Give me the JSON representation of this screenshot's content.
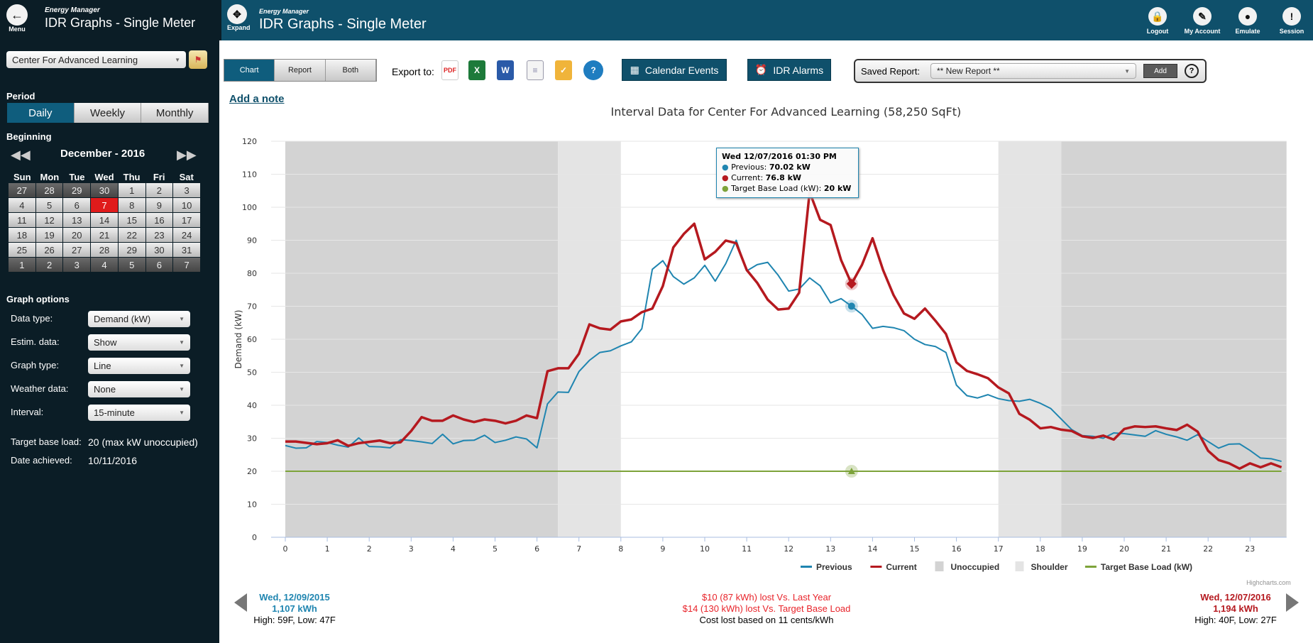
{
  "sidebar": {
    "menu_label": "Menu",
    "app_name": "Energy Manager",
    "page_title": "IDR Graphs - Single Meter",
    "site_select": "Center For Advanced Learning",
    "period_label": "Period",
    "period_options": [
      "Daily",
      "Weekly",
      "Monthly"
    ],
    "period_selected": "Daily",
    "beginning_label": "Beginning",
    "month_label": "December - 2016",
    "weekdays": [
      "Sun",
      "Mon",
      "Tue",
      "Wed",
      "Thu",
      "Fri",
      "Sat"
    ],
    "days": [
      "27",
      "28",
      "29",
      "30",
      "1",
      "2",
      "3",
      "4",
      "5",
      "6",
      "7",
      "8",
      "9",
      "10",
      "11",
      "12",
      "13",
      "14",
      "15",
      "16",
      "17",
      "18",
      "19",
      "20",
      "21",
      "22",
      "23",
      "24",
      "25",
      "26",
      "27",
      "28",
      "29",
      "30",
      "31",
      "1",
      "2",
      "3",
      "4",
      "5",
      "6",
      "7"
    ],
    "selected_day": "7",
    "graph_options_label": "Graph options",
    "options": [
      {
        "label": "Data type:",
        "value": "Demand (kW)"
      },
      {
        "label": "Estim. data:",
        "value": "Show"
      },
      {
        "label": "Graph type:",
        "value": "Line"
      },
      {
        "label": "Weather data:",
        "value": "None"
      },
      {
        "label": "Interval:",
        "value": "15-minute"
      }
    ],
    "target_base_load_label": "Target base load:",
    "target_base_load_value": "20 (max kW unoccupied)",
    "date_achieved_label": "Date achieved:",
    "date_achieved_value": "10/11/2016"
  },
  "header": {
    "expand_label": "Expand",
    "app_name": "Energy Manager",
    "title": "IDR Graphs - Single Meter",
    "actions": [
      {
        "label": "Logout",
        "icon": "lock-icon"
      },
      {
        "label": "My Account",
        "icon": "account-icon"
      },
      {
        "label": "Emulate",
        "icon": "users-icon"
      },
      {
        "label": "Session",
        "icon": "exclamation-icon"
      }
    ]
  },
  "toolbar": {
    "view_tabs": [
      "Chart",
      "Report",
      "Both"
    ],
    "view_selected": "Chart",
    "export_label": "Export to:",
    "export_icons": [
      "pdf-icon",
      "excel-icon",
      "word-icon",
      "document-icon",
      "email-icon",
      "help-icon"
    ],
    "calendar_events": "Calendar Events",
    "idr_alarms": "IDR Alarms",
    "saved_report_label": "Saved Report:",
    "saved_report_value": "** New Report **",
    "add_label": "Add",
    "help": "?",
    "add_note": "Add a note"
  },
  "tooltip": {
    "title": "Wed 12/07/2016 01:30 PM",
    "rows": [
      {
        "name": "Previous",
        "value": "70.02 kW"
      },
      {
        "name": "Current",
        "value": "76.8 kW"
      },
      {
        "name": "Target Base Load (kW)",
        "value": "20 kW"
      }
    ]
  },
  "chart_data": {
    "type": "line",
    "title": "Interval Data for Center For Advanced Learning (58,250 SqFt)",
    "ylabel": "Demand (kW)",
    "xlabel": "",
    "ylim": [
      0,
      120
    ],
    "yticks": [
      0,
      10,
      20,
      30,
      40,
      50,
      60,
      70,
      80,
      90,
      100,
      110,
      120
    ],
    "xticks": [
      0,
      1,
      2,
      3,
      4,
      5,
      6,
      7,
      8,
      9,
      10,
      11,
      12,
      13,
      14,
      15,
      16,
      17,
      18,
      19,
      20,
      21,
      22,
      23
    ],
    "x_interval_hours": 0.25,
    "grid": true,
    "legend": "bottom",
    "credits": "Highcharts.com",
    "bands": [
      {
        "name": "Unoccupied",
        "from": 0,
        "to": 6.5,
        "color": "#d3d3d3"
      },
      {
        "name": "Shoulder",
        "from": 6.5,
        "to": 8,
        "color": "#e4e4e4"
      },
      {
        "name": "Shoulder",
        "from": 17,
        "to": 18.5,
        "color": "#e4e4e4"
      },
      {
        "name": "Unoccupied",
        "from": 18.5,
        "to": 24,
        "color": "#d3d3d3"
      }
    ],
    "series": [
      {
        "name": "Previous",
        "color": "#1f85b0",
        "values": [
          27.8,
          27,
          27.1,
          29,
          28.7,
          27.9,
          27.3,
          30.1,
          27.5,
          27.4,
          27.1,
          29.6,
          29.3,
          28.9,
          28.4,
          31.2,
          28.3,
          29.3,
          29.4,
          30.9,
          28.7,
          29.4,
          30.4,
          29.8,
          27.1,
          40.4,
          44,
          43.9,
          50.2,
          53.6,
          56,
          56.5,
          58,
          59.2,
          63.2,
          81.2,
          83.8,
          79,
          76.7,
          78.6,
          82.4,
          77.6,
          82.9,
          90,
          80.7,
          82.6,
          83.3,
          79.4,
          74.6,
          75.2,
          78.6,
          76.2,
          71,
          72.3,
          70.02,
          67.5,
          63.3,
          63.9,
          63.5,
          62.6,
          60,
          58.4,
          57.8,
          56,
          46.1,
          42.9,
          42.2,
          43.2,
          42,
          41.4,
          41.2,
          41.8,
          40.6,
          39,
          35.8,
          32.6,
          30.8,
          30.6,
          30,
          31.6,
          31.4,
          31,
          30.6,
          32.3,
          31.2,
          30.4,
          29.4,
          31.1,
          29,
          27,
          28.2,
          28.3,
          26.3,
          24,
          23.8,
          23
        ]
      },
      {
        "name": "Current",
        "color": "#b5191f",
        "values": [
          29,
          29,
          28.6,
          28.2,
          28.5,
          29.4,
          27.7,
          28.5,
          28.9,
          29.3,
          28.5,
          28.8,
          32.2,
          36.4,
          35.3,
          35.3,
          36.9,
          35.7,
          34.9,
          35.7,
          35.3,
          34.5,
          35.3,
          36.9,
          36.1,
          50.3,
          51.2,
          51.2,
          55.6,
          64.5,
          63.3,
          62.9,
          65.4,
          66,
          68.2,
          69.3,
          76.1,
          87.8,
          91.9,
          95,
          84.2,
          86.5,
          89.9,
          89.1,
          81,
          77.1,
          72,
          69,
          69.3,
          74.1,
          104.6,
          96.2,
          94.6,
          84,
          76.8,
          82.6,
          90.6,
          81,
          73.4,
          67.8,
          66.2,
          69.3,
          65.6,
          61.6,
          53,
          50.4,
          49.4,
          48.2,
          45.4,
          43.6,
          37.4,
          35.6,
          33,
          33.4,
          32.6,
          32.2,
          30.6,
          30.1,
          30.8,
          29.6,
          32.8,
          33.6,
          33.4,
          33.6,
          33,
          32.5,
          34.1,
          32,
          26.2,
          23.4,
          22.4,
          20.8,
          22.4,
          21.2,
          22.4,
          21.2
        ]
      },
      {
        "name": "Target Base Load (kW)",
        "color": "#7da33a",
        "values": [
          20
        ]
      }
    ],
    "legend_items": [
      {
        "name": "Previous",
        "color": "#1f85b0",
        "kind": "line"
      },
      {
        "name": "Current",
        "color": "#b5191f",
        "kind": "line"
      },
      {
        "name": "Unoccupied",
        "color": "#d3d3d3",
        "kind": "box"
      },
      {
        "name": "Shoulder",
        "color": "#e4e4e4",
        "kind": "box"
      },
      {
        "name": "Target Base Load (kW)",
        "color": "#7da33a",
        "kind": "line"
      }
    ],
    "highlight_x": 13.5
  },
  "summary": {
    "previous_date": "Wed, 12/09/2015",
    "previous_kwh": "1,107 kWh",
    "previous_weather": "High: 59F, Low: 47F",
    "loss_last_year": "$10 (87 kWh) lost Vs. Last Year",
    "loss_target": "$14 (130 kWh) lost Vs. Target Base Load",
    "cost_basis": "Cost lost based on 11 cents/kWh",
    "current_date": "Wed, 12/07/2016",
    "current_kwh": "1,194 kWh",
    "current_weather": "High: 40F, Low: 27F"
  },
  "colors": {
    "header": "#0f506b",
    "sidebar": "#0b1d26",
    "selected_day": "#e01b1b",
    "loss_text": "#e8232a"
  }
}
